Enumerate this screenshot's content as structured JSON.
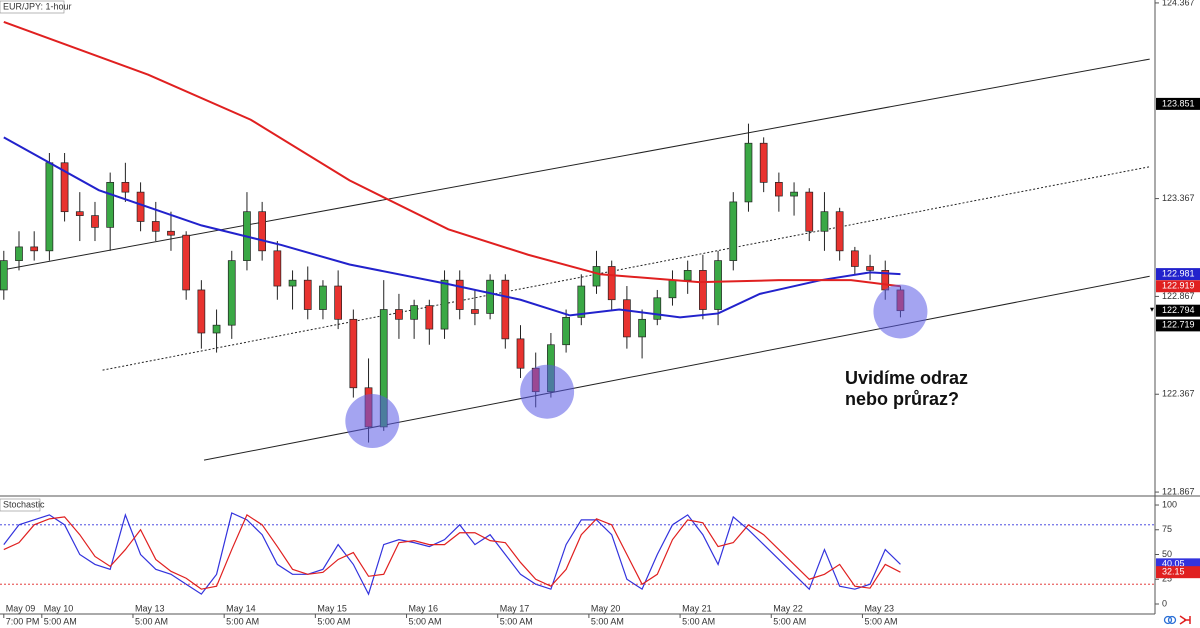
{
  "chart_data": [
    {
      "type": "candlestick",
      "title": "EUR/JPY: 1-hour",
      "x": [
        0,
        4,
        8,
        12,
        16,
        20,
        24,
        28,
        32,
        36,
        40,
        44,
        48,
        52,
        56,
        60,
        64,
        68,
        72,
        76,
        80,
        84,
        88,
        92,
        96,
        100,
        104,
        108,
        112,
        116,
        120,
        124,
        128,
        132,
        136,
        140,
        144,
        148,
        152,
        156,
        160,
        164,
        168,
        172,
        176,
        180,
        184,
        188,
        192,
        196,
        200,
        204,
        208,
        212,
        216,
        220,
        224,
        228,
        232,
        236
      ],
      "open": [
        122.9,
        123.05,
        123.12,
        123.1,
        123.55,
        123.3,
        123.28,
        123.22,
        123.45,
        123.4,
        123.25,
        123.2,
        123.18,
        122.9,
        122.68,
        122.72,
        123.05,
        123.3,
        123.1,
        122.92,
        122.95,
        122.8,
        122.92,
        122.75,
        122.4,
        122.2,
        122.8,
        122.75,
        122.82,
        122.7,
        122.95,
        122.8,
        122.78,
        122.95,
        122.65,
        122.5,
        122.38,
        122.62,
        122.76,
        122.92,
        123.02,
        122.85,
        122.66,
        122.75,
        122.86,
        122.95,
        123.0,
        122.8,
        123.05,
        123.35,
        123.65,
        123.45,
        123.38,
        123.4,
        123.2,
        123.3,
        123.1,
        123.02,
        123.0,
        122.9
      ],
      "high": [
        123.1,
        123.2,
        123.2,
        123.6,
        123.6,
        123.4,
        123.35,
        123.5,
        123.55,
        123.45,
        123.35,
        123.3,
        123.2,
        122.95,
        122.8,
        123.1,
        123.4,
        123.35,
        123.15,
        123.0,
        123.02,
        122.95,
        123.0,
        122.8,
        122.55,
        122.95,
        122.88,
        122.85,
        122.85,
        123.0,
        123.0,
        122.9,
        122.98,
        122.98,
        122.72,
        122.58,
        122.68,
        122.8,
        122.98,
        123.1,
        123.05,
        122.92,
        122.8,
        122.9,
        123.0,
        123.05,
        123.08,
        123.1,
        123.4,
        123.75,
        123.68,
        123.5,
        123.45,
        123.42,
        123.4,
        123.32,
        123.12,
        123.08,
        123.05,
        122.92
      ],
      "low": [
        122.85,
        123.0,
        123.05,
        123.05,
        123.25,
        123.15,
        123.15,
        123.1,
        123.35,
        123.2,
        123.15,
        123.1,
        122.85,
        122.6,
        122.58,
        122.65,
        123.0,
        123.05,
        122.85,
        122.8,
        122.75,
        122.75,
        122.7,
        122.35,
        122.12,
        122.18,
        122.65,
        122.65,
        122.62,
        122.65,
        122.75,
        122.72,
        122.75,
        122.6,
        122.45,
        122.3,
        122.35,
        122.58,
        122.72,
        122.88,
        122.8,
        122.6,
        122.55,
        122.72,
        122.82,
        122.88,
        122.75,
        122.72,
        123.0,
        123.3,
        123.4,
        123.3,
        123.28,
        123.15,
        123.1,
        123.05,
        122.98,
        122.95,
        122.85,
        122.76
      ],
      "close": [
        123.05,
        123.12,
        123.1,
        123.55,
        123.3,
        123.28,
        123.22,
        123.45,
        123.4,
        123.25,
        123.2,
        123.18,
        122.9,
        122.68,
        122.72,
        123.05,
        123.3,
        123.1,
        122.92,
        122.95,
        122.8,
        122.92,
        122.75,
        122.4,
        122.2,
        122.8,
        122.75,
        122.82,
        122.7,
        122.95,
        122.8,
        122.78,
        122.95,
        122.65,
        122.5,
        122.38,
        122.62,
        122.76,
        122.92,
        123.02,
        122.85,
        122.66,
        122.75,
        122.86,
        122.95,
        123.0,
        122.8,
        123.05,
        123.35,
        123.65,
        123.45,
        123.38,
        123.4,
        123.2,
        123.3,
        123.1,
        123.02,
        123.0,
        122.9,
        122.794
      ],
      "up_color": "#3aa845",
      "down_color": "#e8332f",
      "xlim": [
        -1,
        303
      ],
      "ylim": [
        121.852,
        124.382
      ],
      "yticks": [
        124.367,
        123.367,
        122.867,
        122.367,
        121.867
      ],
      "xticks": [
        {
          "value": 0,
          "label": "May 09"
        },
        {
          "value": 10,
          "label": "May 10"
        },
        {
          "value": 34,
          "label": "May 13"
        },
        {
          "value": 58,
          "label": "May 14"
        },
        {
          "value": 82,
          "label": "May 15"
        },
        {
          "value": 106,
          "label": "May 16"
        },
        {
          "value": 130,
          "label": "May 17"
        },
        {
          "value": 154,
          "label": "May 20"
        },
        {
          "value": 178,
          "label": "May 21"
        },
        {
          "value": 202,
          "label": "May 22"
        },
        {
          "value": 226,
          "label": "May 23"
        }
      ],
      "xtick_times": [
        "7:00 PM",
        "5:00 AM",
        "5:00 AM",
        "5:00 AM",
        "5:00 AM",
        "5:00 AM",
        "5:00 AM",
        "5:00 AM",
        "5:00 AM",
        "5:00 AM",
        "5:00 AM"
      ],
      "lines": [
        {
          "color": "#2222cc",
          "x": [
            0,
            25,
            52,
            73,
            91,
            117,
            136,
            149,
            162,
            178,
            188,
            199,
            215,
            228,
            236
          ],
          "values": [
            123.68,
            123.41,
            123.23,
            123.13,
            123.03,
            122.93,
            122.85,
            122.77,
            122.8,
            122.76,
            122.78,
            122.88,
            122.95,
            122.99,
            122.981
          ]
        },
        {
          "color": "#e02020",
          "x": [
            0,
            38,
            65,
            91,
            117,
            138,
            157,
            183,
            204,
            223,
            236
          ],
          "values": [
            124.27,
            124.0,
            123.77,
            123.46,
            123.21,
            123.08,
            122.98,
            122.94,
            122.95,
            122.95,
            122.919
          ]
        }
      ],
      "trendlines": [
        {
          "style": "solid",
          "x": [
            52.7,
            301.6
          ],
          "values": [
            122.03,
            122.97
          ]
        },
        {
          "style": "dotted",
          "x": [
            26,
            301.6
          ],
          "values": [
            122.49,
            123.53
          ]
        },
        {
          "style": "solid",
          "x": [
            -1,
            301.6
          ],
          "values": [
            123.0,
            124.08
          ]
        }
      ],
      "circles": {
        "x": [
          97,
          143,
          236
        ],
        "values": [
          122.23,
          122.38,
          122.79
        ]
      },
      "price_markers": [
        {
          "value": 123.851,
          "color": "#000000"
        },
        {
          "value": 122.981,
          "color": "#2222cc"
        },
        {
          "value": 122.919,
          "color": "#e02020"
        },
        {
          "value": 122.794,
          "color": "#000000"
        },
        {
          "value": 122.719,
          "color": "#000000"
        }
      ],
      "annotations": [
        "Uvidíme odraz",
        "nebo průraz?"
      ]
    },
    {
      "type": "line",
      "title": "Stochastic",
      "x": [
        0,
        4,
        8,
        12,
        16,
        20,
        24,
        28,
        32,
        36,
        40,
        44,
        48,
        52,
        56,
        60,
        64,
        68,
        72,
        76,
        80,
        84,
        88,
        92,
        96,
        100,
        104,
        108,
        112,
        116,
        120,
        124,
        128,
        132,
        136,
        140,
        144,
        148,
        152,
        156,
        160,
        164,
        168,
        172,
        176,
        180,
        184,
        188,
        192,
        196,
        200,
        204,
        208,
        212,
        216,
        220,
        224,
        228,
        232,
        236
      ],
      "xlim": [
        -1,
        303
      ],
      "ylim": [
        -10.1,
        108.1
      ],
      "yticks": [
        100,
        75,
        50,
        25,
        0
      ],
      "levels": [
        80,
        20
      ],
      "series": [
        {
          "color": "#3333dd",
          "values": [
            60,
            80,
            85,
            90,
            80,
            50,
            40,
            35,
            90,
            50,
            35,
            30,
            20,
            10,
            30,
            92,
            85,
            70,
            40,
            30,
            30,
            35,
            60,
            40,
            10,
            60,
            65,
            62,
            58,
            65,
            80,
            60,
            70,
            50,
            30,
            20,
            15,
            60,
            85,
            85,
            70,
            25,
            15,
            50,
            80,
            90,
            70,
            40,
            88,
            75,
            60,
            45,
            30,
            15,
            55,
            18,
            15,
            20,
            55,
            40.05
          ]
        },
        {
          "color": "#e02020",
          "values": [
            55,
            62,
            80,
            86,
            88,
            70,
            48,
            38,
            55,
            75,
            45,
            33,
            26,
            15,
            18,
            55,
            90,
            80,
            58,
            35,
            30,
            32,
            45,
            52,
            28,
            30,
            62,
            64,
            60,
            60,
            72,
            72,
            64,
            62,
            42,
            25,
            18,
            35,
            70,
            86,
            80,
            50,
            20,
            30,
            65,
            85,
            82,
            58,
            62,
            80,
            70,
            55,
            40,
            25,
            30,
            40,
            18,
            16,
            40,
            32.15
          ]
        }
      ]
    }
  ]
}
